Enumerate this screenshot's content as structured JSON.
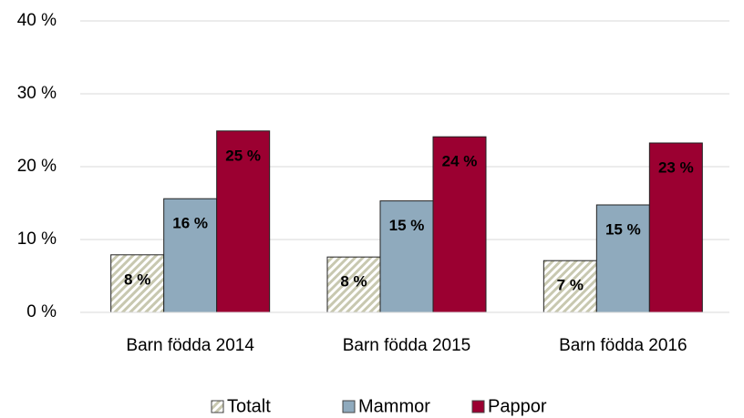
{
  "chart_data": {
    "type": "bar",
    "categories": [
      "Barn födda 2014",
      "Barn födda 2015",
      "Barn födda 2016"
    ],
    "series": [
      {
        "name": "Totalt",
        "color": "#c8c8b0",
        "hatch": true,
        "values": [
          7.9,
          7.6,
          7.1
        ],
        "value_labels": [
          "8 %",
          "8 %",
          "7 %"
        ]
      },
      {
        "name": "Mammor",
        "color": "#8faabd",
        "values": [
          15.6,
          15.3,
          14.75
        ],
        "value_labels": [
          "16 %",
          "15 %",
          "15 %"
        ]
      },
      {
        "name": "Pappor",
        "color": "#9b0031",
        "values": [
          24.9,
          24.1,
          23.25
        ],
        "value_labels": [
          "25 %",
          "24 %",
          "23 %"
        ]
      }
    ],
    "ylim": [
      0,
      40
    ],
    "yticks": [
      {
        "value": 0,
        "label": "0 %"
      },
      {
        "value": 10,
        "label": "10 %"
      },
      {
        "value": 20,
        "label": "20 %"
      },
      {
        "value": 30,
        "label": "30 %"
      },
      {
        "value": 40,
        "label": "40 %"
      }
    ],
    "grid": true,
    "legend": "bottom"
  }
}
